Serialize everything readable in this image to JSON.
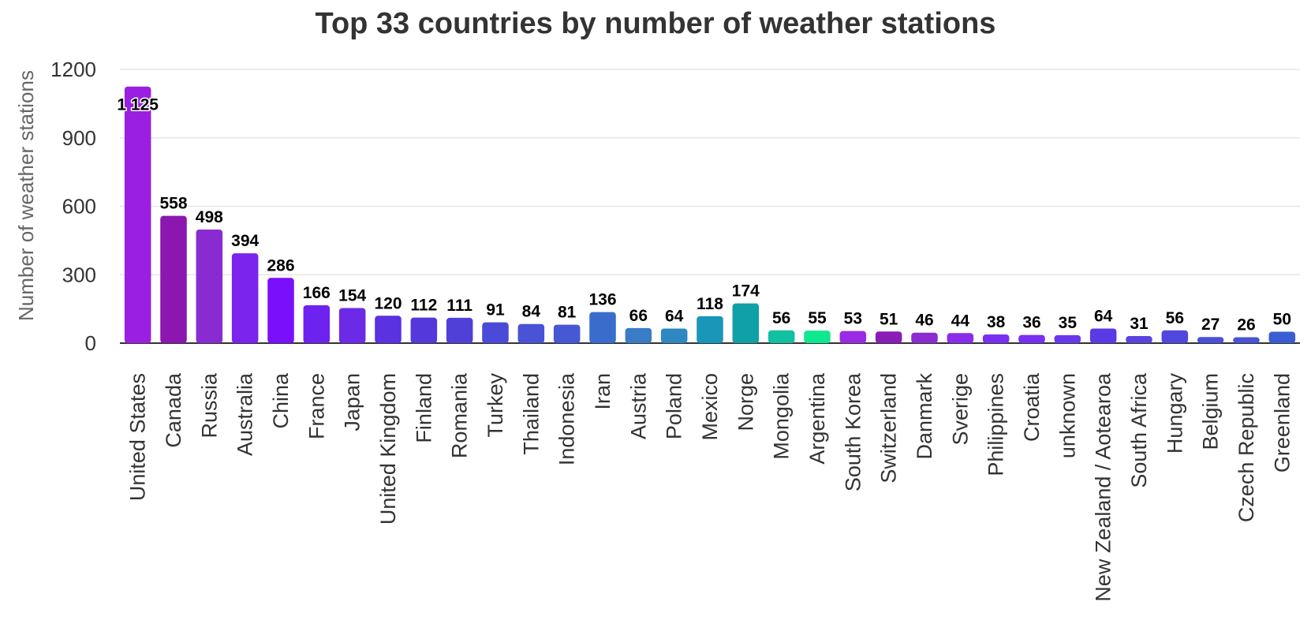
{
  "chart_data": {
    "type": "bar",
    "title": "Top 33 countries by number of weather stations",
    "xlabel": "",
    "ylabel": "Number of weather stations",
    "ylim": [
      0,
      1200
    ],
    "yticks": [
      0,
      300,
      600,
      900,
      1200
    ],
    "grid": true,
    "categories": [
      "United States",
      "Canada",
      "Russia",
      "Australia",
      "China",
      "France",
      "Japan",
      "United Kingdom",
      "Finland",
      "Romania",
      "Turkey",
      "Thailand",
      "Indonesia",
      "Iran",
      "Austria",
      "Poland",
      "Mexico",
      "Norge",
      "Mongolia",
      "Argentina",
      "South Korea",
      "Switzerland",
      "Danmark",
      "Sverige",
      "Philippines",
      "Croatia",
      "unknown",
      "New Zealand / Aotearoa",
      "South Africa",
      "Hungary",
      "Belgium",
      "Czech Republic",
      "Greenland"
    ],
    "values": [
      1125,
      558,
      498,
      394,
      286,
      166,
      154,
      120,
      112,
      111,
      91,
      84,
      81,
      136,
      66,
      64,
      118,
      174,
      56,
      55,
      53,
      51,
      46,
      44,
      38,
      36,
      35,
      64,
      31,
      56,
      27,
      26,
      50
    ],
    "value_labels": [
      "1 125",
      "558",
      "498",
      "394",
      "286",
      "166",
      "154",
      "120",
      "112",
      "111",
      "91",
      "84",
      "81",
      "136",
      "66",
      "64",
      "118",
      "174",
      "56",
      "55",
      "53",
      "51",
      "46",
      "44",
      "38",
      "36",
      "35",
      "64",
      "31",
      "56",
      "27",
      "26",
      "50"
    ],
    "colors": [
      "#9a1fe0",
      "#8c16b0",
      "#8a2bd2",
      "#7a24ee",
      "#7a10fb",
      "#6e22f0",
      "#6a2ae8",
      "#5a32e0",
      "#5438dc",
      "#5040d8",
      "#4a4ad8",
      "#4a52d6",
      "#4658d4",
      "#3a6ccc",
      "#3a7cc6",
      "#2e88c2",
      "#1a96b8",
      "#10a0a8",
      "#10c0a0",
      "#10e890",
      "#9a2ae4",
      "#8a1cb8",
      "#8a2cd0",
      "#8a2ce8",
      "#7a30f0",
      "#7a30f0",
      "#6a38ec",
      "#5a3ae4",
      "#5a44e0",
      "#5048dc",
      "#4a50d8",
      "#4a54d6",
      "#3a5ed2"
    ]
  }
}
